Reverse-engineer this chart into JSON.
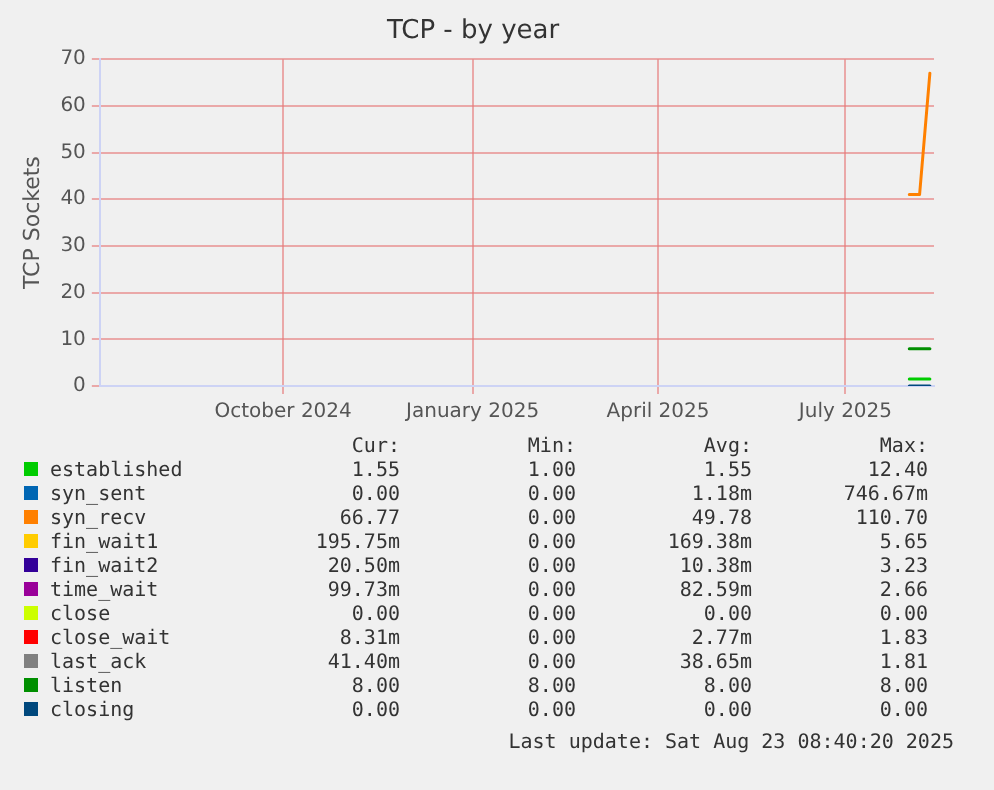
{
  "chart_data": {
    "type": "line",
    "title": "TCP - by year",
    "ylabel": "TCP Sockets",
    "x": [
      "2025-08-01",
      "2025-08-06",
      "2025-08-11"
    ],
    "xlim": [
      "2024-07-04",
      "2025-08-13"
    ],
    "xticks": [
      {
        "value": "2024-10-01",
        "label": "October 2024"
      },
      {
        "value": "2025-01-01",
        "label": "January 2025"
      },
      {
        "value": "2025-04-01",
        "label": "April 2025"
      },
      {
        "value": "2025-07-01",
        "label": "July 2025"
      }
    ],
    "ylim": [
      0,
      70
    ],
    "yticks": [
      0,
      10,
      20,
      30,
      40,
      50,
      60,
      70
    ],
    "grid": true,
    "legend": "bottom",
    "marker": "none",
    "line_style": "solid",
    "series": [
      {
        "name": "established",
        "color": "#00cc00",
        "values": [
          1.5,
          1.5,
          1.5
        ]
      },
      {
        "name": "syn_sent",
        "color": "#0066b3",
        "values": [
          null,
          null,
          null
        ]
      },
      {
        "name": "syn_recv",
        "color": "#ff8000",
        "values": [
          41,
          41,
          67
        ]
      },
      {
        "name": "fin_wait1",
        "color": "#ffcc00",
        "values": [
          null,
          null,
          null
        ]
      },
      {
        "name": "fin_wait2",
        "color": "#330099",
        "values": [
          null,
          null,
          null
        ]
      },
      {
        "name": "time_wait",
        "color": "#990099",
        "values": [
          null,
          null,
          null
        ]
      },
      {
        "name": "close",
        "color": "#ccff00",
        "values": [
          null,
          null,
          null
        ]
      },
      {
        "name": "close_wait",
        "color": "#ff0000",
        "values": [
          null,
          null,
          null
        ]
      },
      {
        "name": "last_ack",
        "color": "#808080",
        "values": [
          null,
          null,
          null
        ]
      },
      {
        "name": "listen",
        "color": "#008f00",
        "values": [
          8,
          8,
          8
        ]
      },
      {
        "name": "closing",
        "color": "#00487d",
        "values": [
          0,
          0,
          0
        ]
      }
    ],
    "annotations": [
      "Cur:",
      "Min:",
      "Avg:",
      "Max:",
      "1.55",
      "1.00",
      "1.55",
      "12.40",
      "0.00",
      "0.00",
      "1.18m",
      "746.67m",
      "66.77",
      "0.00",
      "49.78",
      "110.70",
      "195.75m",
      "0.00",
      "169.38m",
      "5.65",
      "20.50m",
      "0.00",
      "10.38m",
      "3.23",
      "99.73m",
      "0.00",
      "82.59m",
      "2.66",
      "0.00",
      "0.00",
      "0.00",
      "0.00",
      "8.31m",
      "0.00",
      "2.77m",
      "1.83",
      "41.40m",
      "0.00",
      "38.65m",
      "1.81",
      "8.00",
      "8.00",
      "8.00",
      "8.00",
      "0.00",
      "0.00",
      "0.00",
      "0.00",
      "Last update: Sat Aug 23 08:40:20 2025"
    ]
  }
}
